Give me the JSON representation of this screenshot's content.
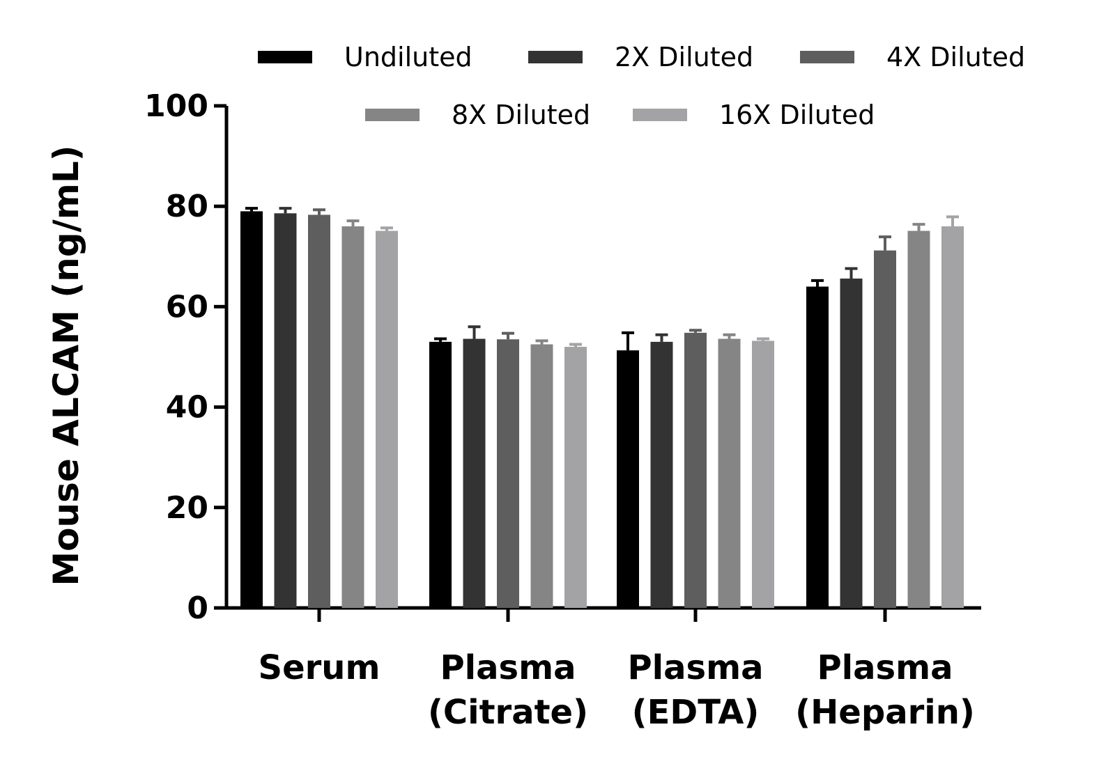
{
  "chart_data": {
    "type": "bar",
    "title": "",
    "xlabel": "",
    "ylabel": "Mouse ALCAM (ng/mL)",
    "ylim": [
      0,
      100
    ],
    "yticks": [
      0,
      20,
      40,
      60,
      80,
      100
    ],
    "grid": false,
    "legend_position": "top",
    "categories": [
      [
        "Serum"
      ],
      [
        "Plasma",
        "(Citrate)"
      ],
      [
        "Plasma",
        "(EDTA)"
      ],
      [
        "Plasma",
        "(Heparin)"
      ]
    ],
    "series": [
      {
        "name": "Undiluted",
        "color": "#000000",
        "values": [
          79.0,
          53.0,
          51.3,
          64.0
        ],
        "errors": [
          0.6,
          0.6,
          3.5,
          1.2
        ]
      },
      {
        "name": "2X Diluted",
        "color": "#333333",
        "values": [
          78.6,
          53.6,
          53.0,
          65.6
        ],
        "errors": [
          1.0,
          2.4,
          1.4,
          2.0
        ]
      },
      {
        "name": "4X Diluted",
        "color": "#5e5e5e",
        "values": [
          78.3,
          53.5,
          54.8,
          71.2
        ],
        "errors": [
          1.0,
          1.2,
          0.5,
          2.7
        ]
      },
      {
        "name": "8X Diluted",
        "color": "#858585",
        "values": [
          76.0,
          52.5,
          53.6,
          75.1
        ],
        "errors": [
          1.1,
          0.7,
          0.8,
          1.3
        ]
      },
      {
        "name": "16X Diluted",
        "color": "#a3a3a6",
        "values": [
          75.1,
          52.0,
          53.2,
          76.0
        ],
        "errors": [
          0.6,
          0.5,
          0.4,
          1.9
        ]
      }
    ]
  }
}
